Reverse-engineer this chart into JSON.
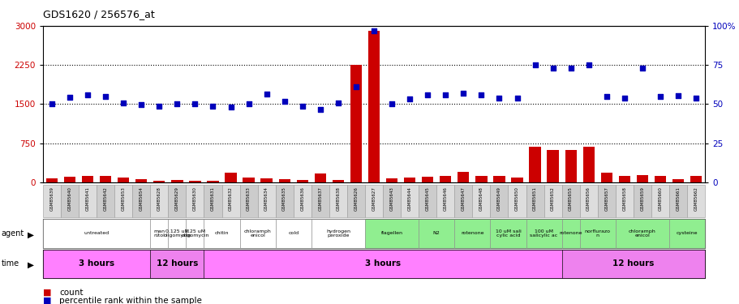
{
  "title": "GDS1620 / 256576_at",
  "gsm_labels": [
    "GSM85639",
    "GSM85640",
    "GSM85641",
    "GSM85642",
    "GSM85653",
    "GSM85654",
    "GSM85628",
    "GSM85629",
    "GSM85630",
    "GSM85631",
    "GSM85632",
    "GSM85633",
    "GSM85634",
    "GSM85635",
    "GSM85636",
    "GSM85637",
    "GSM85638",
    "GSM85626",
    "GSM85627",
    "GSM85643",
    "GSM85644",
    "GSM85645",
    "GSM85646",
    "GSM85647",
    "GSM85648",
    "GSM85649",
    "GSM85650",
    "GSM85651",
    "GSM85652",
    "GSM85655",
    "GSM85656",
    "GSM85657",
    "GSM85658",
    "GSM85659",
    "GSM85660",
    "GSM85661",
    "GSM85662"
  ],
  "counts": [
    80,
    110,
    130,
    120,
    90,
    55,
    30,
    45,
    35,
    30,
    180,
    100,
    70,
    55,
    45,
    170,
    50,
    2250,
    2900,
    80,
    95,
    115,
    130,
    200,
    130,
    120,
    100,
    680,
    620,
    620,
    680,
    180,
    130,
    140,
    120,
    55,
    130
  ],
  "percentile_ranks": [
    1510,
    1630,
    1670,
    1650,
    1530,
    1490,
    1460,
    1510,
    1510,
    1460,
    1445,
    1510,
    1690,
    1555,
    1460,
    1395,
    1530,
    1840,
    2900,
    1510,
    1600,
    1680,
    1680,
    1710,
    1680,
    1620,
    1620,
    2250,
    2190,
    2190,
    2250,
    1640,
    1620,
    2190,
    1640,
    1665,
    1610
  ],
  "agent_groups": [
    {
      "label": "untreated",
      "start": 0,
      "end": 6,
      "color": "#ffffff"
    },
    {
      "label": "man\nnitol",
      "start": 6,
      "end": 7,
      "color": "#ffffff"
    },
    {
      "label": "0.125 uM\noligomycin",
      "start": 7,
      "end": 8,
      "color": "#ffffff"
    },
    {
      "label": "1.25 uM\noligomycin",
      "start": 8,
      "end": 9,
      "color": "#ffffff"
    },
    {
      "label": "chitin",
      "start": 9,
      "end": 11,
      "color": "#ffffff"
    },
    {
      "label": "chloramph\nenicol",
      "start": 11,
      "end": 13,
      "color": "#ffffff"
    },
    {
      "label": "cold",
      "start": 13,
      "end": 15,
      "color": "#ffffff"
    },
    {
      "label": "hydrogen\nperoxide",
      "start": 15,
      "end": 18,
      "color": "#ffffff"
    },
    {
      "label": "flagellen",
      "start": 18,
      "end": 21,
      "color": "#90EE90"
    },
    {
      "label": "N2",
      "start": 21,
      "end": 23,
      "color": "#90EE90"
    },
    {
      "label": "rotenone",
      "start": 23,
      "end": 25,
      "color": "#90EE90"
    },
    {
      "label": "10 uM sali\ncylic acid",
      "start": 25,
      "end": 27,
      "color": "#90EE90"
    },
    {
      "label": "100 uM\nsalicylic ac",
      "start": 27,
      "end": 29,
      "color": "#90EE90"
    },
    {
      "label": "rotenone",
      "start": 29,
      "end": 30,
      "color": "#90EE90"
    },
    {
      "label": "norflurazo\nn",
      "start": 30,
      "end": 32,
      "color": "#90EE90"
    },
    {
      "label": "chloramph\nenicol",
      "start": 32,
      "end": 35,
      "color": "#90EE90"
    },
    {
      "label": "cysteine",
      "start": 35,
      "end": 37,
      "color": "#90EE90"
    }
  ],
  "time_groups": [
    {
      "label": "3 hours",
      "start": 0,
      "end": 6,
      "color": "#FF80FF"
    },
    {
      "label": "12 hours",
      "start": 6,
      "end": 9,
      "color": "#EE82EE"
    },
    {
      "label": "3 hours",
      "start": 9,
      "end": 29,
      "color": "#FF80FF"
    },
    {
      "label": "12 hours",
      "start": 29,
      "end": 37,
      "color": "#EE82EE"
    }
  ],
  "ymax": 3000,
  "yticks_left": [
    0,
    750,
    1500,
    2250,
    3000
  ],
  "ytick_right_labels": [
    "0",
    "25",
    "50",
    "75",
    "100%"
  ],
  "bar_color": "#CC0000",
  "dot_color": "#0000BB",
  "left_tick_color": "#CC0000",
  "right_tick_color": "#0000BB",
  "title_fontsize": 9
}
